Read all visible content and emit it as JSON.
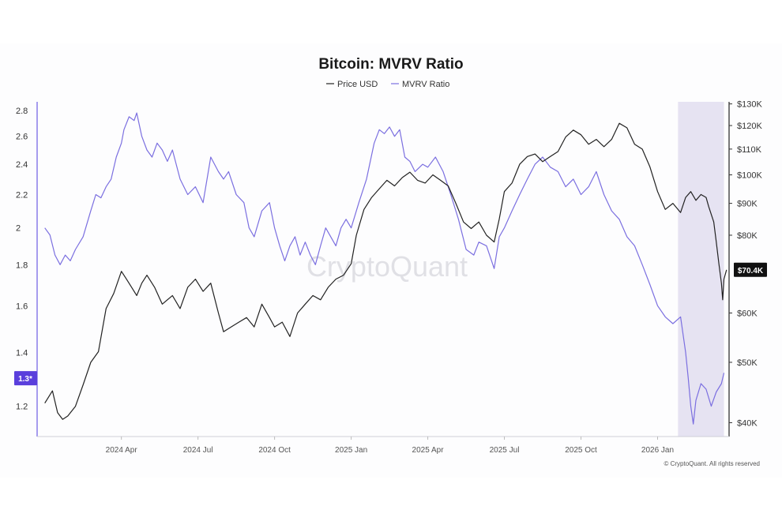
{
  "chart_data": {
    "type": "line",
    "title": "Bitcoin: MVRV Ratio",
    "legend": [
      {
        "name": "Price USD",
        "color": "#222222"
      },
      {
        "name": "MVRV Ratio",
        "color": "#7b6fe0"
      }
    ],
    "x_ticks": [
      "2024 Apr",
      "2024 Jul",
      "2024 Oct",
      "2025 Jan",
      "2025 Apr",
      "2025 Jul",
      "2025 Oct",
      "2026 Jan"
    ],
    "x_tick_months": [
      3,
      6,
      9,
      12,
      15,
      18,
      21,
      24
    ],
    "x_range_months": [
      -0.3,
      26.8
    ],
    "shaded_region_months": [
      24.8,
      26.6
    ],
    "left_axis": {
      "ticks": [
        1.2,
        1.4,
        1.6,
        1.8,
        2,
        2.2,
        2.4,
        2.6,
        2.8
      ],
      "labels": [
        "1.2",
        "1.4",
        "1.6",
        "1.8",
        "2",
        "2.2",
        "2.4",
        "2.6",
        "2.8"
      ],
      "range": [
        1.1,
        2.87
      ],
      "scale": "log"
    },
    "right_axis": {
      "ticks": [
        40000,
        50000,
        60000,
        80000,
        90000,
        100000,
        110000,
        120000,
        130000
      ],
      "labels": [
        "$40K",
        "$50K",
        "$60K",
        "$80K",
        "$90K",
        "$100K",
        "$110K",
        "$120K",
        "$130K"
      ],
      "range": [
        38000,
        131000
      ],
      "scale": "log"
    },
    "current_mvrv_label": "1.3*",
    "current_mvrv_value": 1.3,
    "current_price_label": "$70.4K",
    "current_price_value": 70400,
    "series": [
      {
        "name": "MVRV Ratio",
        "color": "#7b6fe0",
        "points": [
          [
            0,
            2.0
          ],
          [
            0.2,
            1.96
          ],
          [
            0.4,
            1.85
          ],
          [
            0.6,
            1.8
          ],
          [
            0.8,
            1.85
          ],
          [
            1.0,
            1.82
          ],
          [
            1.2,
            1.88
          ],
          [
            1.5,
            1.95
          ],
          [
            1.8,
            2.1
          ],
          [
            2.0,
            2.2
          ],
          [
            2.2,
            2.18
          ],
          [
            2.4,
            2.25
          ],
          [
            2.6,
            2.3
          ],
          [
            2.8,
            2.45
          ],
          [
            3.0,
            2.55
          ],
          [
            3.1,
            2.65
          ],
          [
            3.3,
            2.75
          ],
          [
            3.5,
            2.72
          ],
          [
            3.6,
            2.78
          ],
          [
            3.8,
            2.6
          ],
          [
            4.0,
            2.5
          ],
          [
            4.2,
            2.45
          ],
          [
            4.4,
            2.55
          ],
          [
            4.6,
            2.5
          ],
          [
            4.8,
            2.42
          ],
          [
            5.0,
            2.5
          ],
          [
            5.3,
            2.3
          ],
          [
            5.6,
            2.2
          ],
          [
            5.9,
            2.25
          ],
          [
            6.2,
            2.15
          ],
          [
            6.5,
            2.45
          ],
          [
            6.8,
            2.35
          ],
          [
            7.0,
            2.3
          ],
          [
            7.2,
            2.35
          ],
          [
            7.5,
            2.2
          ],
          [
            7.8,
            2.15
          ],
          [
            8.0,
            2.0
          ],
          [
            8.2,
            1.95
          ],
          [
            8.5,
            2.1
          ],
          [
            8.8,
            2.15
          ],
          [
            9.0,
            2.0
          ],
          [
            9.2,
            1.9
          ],
          [
            9.4,
            1.82
          ],
          [
            9.6,
            1.9
          ],
          [
            9.8,
            1.95
          ],
          [
            10.0,
            1.85
          ],
          [
            10.2,
            1.92
          ],
          [
            10.4,
            1.85
          ],
          [
            10.6,
            1.8
          ],
          [
            10.8,
            1.9
          ],
          [
            11.0,
            2.0
          ],
          [
            11.2,
            1.95
          ],
          [
            11.4,
            1.9
          ],
          [
            11.6,
            2.0
          ],
          [
            11.8,
            2.05
          ],
          [
            12.0,
            2.0
          ],
          [
            12.3,
            2.15
          ],
          [
            12.6,
            2.3
          ],
          [
            12.9,
            2.55
          ],
          [
            13.1,
            2.65
          ],
          [
            13.3,
            2.62
          ],
          [
            13.5,
            2.67
          ],
          [
            13.7,
            2.6
          ],
          [
            13.9,
            2.65
          ],
          [
            14.1,
            2.45
          ],
          [
            14.3,
            2.42
          ],
          [
            14.5,
            2.35
          ],
          [
            14.8,
            2.4
          ],
          [
            15.0,
            2.38
          ],
          [
            15.3,
            2.45
          ],
          [
            15.6,
            2.35
          ],
          [
            15.9,
            2.2
          ],
          [
            16.2,
            2.05
          ],
          [
            16.5,
            1.88
          ],
          [
            16.8,
            1.85
          ],
          [
            17.0,
            1.92
          ],
          [
            17.3,
            1.9
          ],
          [
            17.6,
            1.78
          ],
          [
            17.8,
            1.95
          ],
          [
            18.0,
            2.0
          ],
          [
            18.3,
            2.1
          ],
          [
            18.6,
            2.2
          ],
          [
            18.9,
            2.3
          ],
          [
            19.2,
            2.4
          ],
          [
            19.5,
            2.45
          ],
          [
            19.8,
            2.38
          ],
          [
            20.1,
            2.35
          ],
          [
            20.4,
            2.25
          ],
          [
            20.7,
            2.3
          ],
          [
            21.0,
            2.2
          ],
          [
            21.3,
            2.25
          ],
          [
            21.6,
            2.35
          ],
          [
            21.9,
            2.2
          ],
          [
            22.2,
            2.1
          ],
          [
            22.5,
            2.05
          ],
          [
            22.8,
            1.95
          ],
          [
            23.1,
            1.9
          ],
          [
            23.4,
            1.8
          ],
          [
            23.7,
            1.7
          ],
          [
            24.0,
            1.6
          ],
          [
            24.3,
            1.55
          ],
          [
            24.6,
            1.52
          ],
          [
            24.9,
            1.55
          ],
          [
            25.1,
            1.4
          ],
          [
            25.2,
            1.3
          ],
          [
            25.3,
            1.2
          ],
          [
            25.4,
            1.14
          ],
          [
            25.5,
            1.22
          ],
          [
            25.7,
            1.28
          ],
          [
            25.9,
            1.26
          ],
          [
            26.1,
            1.2
          ],
          [
            26.3,
            1.25
          ],
          [
            26.5,
            1.28
          ],
          [
            26.6,
            1.32
          ]
        ]
      },
      {
        "name": "Price USD",
        "color": "#222222",
        "points": [
          [
            0,
            43000
          ],
          [
            0.3,
            45000
          ],
          [
            0.5,
            41500
          ],
          [
            0.7,
            40500
          ],
          [
            0.9,
            41000
          ],
          [
            1.2,
            42500
          ],
          [
            1.5,
            46000
          ],
          [
            1.8,
            50000
          ],
          [
            2.1,
            52000
          ],
          [
            2.4,
            61000
          ],
          [
            2.7,
            64500
          ],
          [
            3.0,
            70000
          ],
          [
            3.2,
            68000
          ],
          [
            3.4,
            66000
          ],
          [
            3.6,
            64000
          ],
          [
            3.8,
            67000
          ],
          [
            4.0,
            69000
          ],
          [
            4.3,
            66000
          ],
          [
            4.6,
            62000
          ],
          [
            5.0,
            64000
          ],
          [
            5.3,
            61000
          ],
          [
            5.6,
            66000
          ],
          [
            5.9,
            68000
          ],
          [
            6.2,
            65000
          ],
          [
            6.5,
            67000
          ],
          [
            6.8,
            60000
          ],
          [
            7.0,
            56000
          ],
          [
            7.3,
            57000
          ],
          [
            7.6,
            58000
          ],
          [
            7.9,
            59000
          ],
          [
            8.2,
            57000
          ],
          [
            8.5,
            62000
          ],
          [
            8.8,
            59000
          ],
          [
            9.0,
            57000
          ],
          [
            9.3,
            58000
          ],
          [
            9.6,
            55000
          ],
          [
            9.9,
            60000
          ],
          [
            10.2,
            62000
          ],
          [
            10.5,
            64000
          ],
          [
            10.8,
            63000
          ],
          [
            11.1,
            66000
          ],
          [
            11.4,
            68000
          ],
          [
            11.7,
            69000
          ],
          [
            12.0,
            72000
          ],
          [
            12.2,
            80000
          ],
          [
            12.5,
            88000
          ],
          [
            12.8,
            92000
          ],
          [
            13.1,
            95000
          ],
          [
            13.4,
            98000
          ],
          [
            13.7,
            96000
          ],
          [
            14.0,
            99000
          ],
          [
            14.3,
            101000
          ],
          [
            14.6,
            98000
          ],
          [
            14.9,
            97000
          ],
          [
            15.2,
            100000
          ],
          [
            15.5,
            98000
          ],
          [
            15.8,
            96000
          ],
          [
            16.1,
            90000
          ],
          [
            16.4,
            84000
          ],
          [
            16.7,
            82000
          ],
          [
            17.0,
            84000
          ],
          [
            17.3,
            80000
          ],
          [
            17.6,
            78000
          ],
          [
            17.8,
            85000
          ],
          [
            18.0,
            94000
          ],
          [
            18.3,
            97000
          ],
          [
            18.6,
            104000
          ],
          [
            18.9,
            107000
          ],
          [
            19.2,
            108000
          ],
          [
            19.5,
            105000
          ],
          [
            19.8,
            107000
          ],
          [
            20.1,
            109000
          ],
          [
            20.4,
            115000
          ],
          [
            20.7,
            118000
          ],
          [
            21.0,
            116000
          ],
          [
            21.3,
            112000
          ],
          [
            21.6,
            114000
          ],
          [
            21.9,
            111000
          ],
          [
            22.2,
            114000
          ],
          [
            22.5,
            121000
          ],
          [
            22.8,
            119000
          ],
          [
            23.1,
            112000
          ],
          [
            23.4,
            110000
          ],
          [
            23.7,
            103000
          ],
          [
            24.0,
            94000
          ],
          [
            24.3,
            88000
          ],
          [
            24.6,
            90000
          ],
          [
            24.9,
            87000
          ],
          [
            25.1,
            92000
          ],
          [
            25.3,
            94000
          ],
          [
            25.5,
            91000
          ],
          [
            25.7,
            93000
          ],
          [
            25.9,
            92000
          ],
          [
            26.0,
            89000
          ],
          [
            26.2,
            84000
          ],
          [
            26.3,
            78000
          ],
          [
            26.4,
            72000
          ],
          [
            26.5,
            67000
          ],
          [
            26.55,
            63000
          ],
          [
            26.6,
            68000
          ],
          [
            26.7,
            70400
          ]
        ]
      }
    ]
  },
  "watermark": "CryptoQuant",
  "copyright": "© CryptoQuant. All rights reserved"
}
